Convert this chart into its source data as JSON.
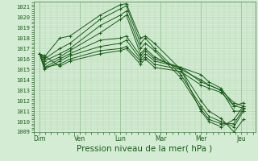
{
  "bg_color": "#d4ecd4",
  "grid_color": "#aed4ae",
  "line_color": "#1a5c1a",
  "xlabel": "Pression niveau de la mer( hPa )",
  "xlabel_fontsize": 7.5,
  "ylim": [
    1009,
    1021.5
  ],
  "yticks": [
    1009,
    1010,
    1011,
    1012,
    1013,
    1014,
    1015,
    1016,
    1017,
    1018,
    1019,
    1020,
    1021
  ],
  "xtick_labels": [
    "Dim",
    "Ven",
    "Lun",
    "Mar",
    "Mer",
    "Jeu"
  ],
  "xtick_positions": [
    0,
    1,
    2,
    3,
    4,
    5
  ],
  "series": [
    [
      1016.5,
      1016.2,
      1018.0,
      1018.2,
      1020.2,
      1021.2,
      1021.3,
      1018.0,
      1018.2,
      1017.5,
      1015.0,
      1012.0,
      1011.0,
      1010.3,
      1009.0,
      1010.2
    ],
    [
      1016.5,
      1016.0,
      1017.0,
      1017.5,
      1019.8,
      1020.8,
      1021.1,
      1017.5,
      1018.0,
      1017.0,
      1014.5,
      1011.5,
      1010.5,
      1010.0,
      1009.5,
      1011.0
    ],
    [
      1016.5,
      1015.8,
      1016.5,
      1017.0,
      1019.2,
      1020.2,
      1020.6,
      1017.0,
      1017.5,
      1016.8,
      1014.2,
      1011.2,
      1010.2,
      1009.8,
      1009.8,
      1011.2
    ],
    [
      1016.5,
      1015.5,
      1016.2,
      1016.8,
      1018.5,
      1019.8,
      1020.2,
      1016.5,
      1017.0,
      1016.2,
      1015.0,
      1011.0,
      1010.0,
      1009.5,
      1010.2,
      1011.5
    ],
    [
      1016.5,
      1015.2,
      1016.0,
      1016.5,
      1017.8,
      1018.0,
      1018.2,
      1016.3,
      1016.8,
      1016.0,
      1015.2,
      1013.8,
      1013.5,
      1013.0,
      1011.0,
      1011.0
    ],
    [
      1016.5,
      1015.0,
      1015.8,
      1016.3,
      1017.2,
      1017.5,
      1017.8,
      1016.0,
      1016.5,
      1015.8,
      1015.2,
      1014.5,
      1013.8,
      1013.2,
      1011.5,
      1011.3
    ],
    [
      1016.5,
      1015.2,
      1015.5,
      1016.0,
      1016.8,
      1017.0,
      1017.2,
      1015.8,
      1016.2,
      1015.5,
      1015.0,
      1014.0,
      1013.5,
      1013.0,
      1011.8,
      1011.5
    ],
    [
      1016.5,
      1016.3,
      1015.3,
      1015.8,
      1016.5,
      1016.8,
      1017.0,
      1015.5,
      1016.0,
      1015.2,
      1014.8,
      1013.5,
      1013.2,
      1012.8,
      1011.5,
      1011.8
    ]
  ],
  "x_positions": [
    0,
    0.12,
    0.5,
    0.75,
    1.5,
    2.0,
    2.15,
    2.5,
    2.62,
    2.85,
    3.5,
    4.0,
    4.2,
    4.5,
    4.82,
    5.05
  ]
}
